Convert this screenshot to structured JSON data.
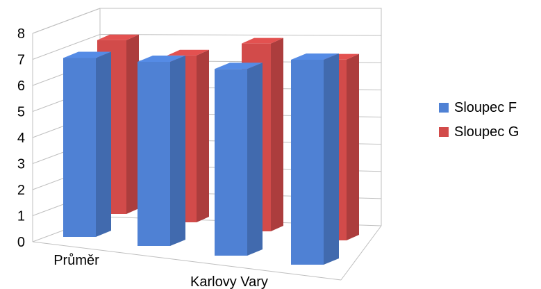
{
  "chart_data": {
    "type": "bar",
    "style": "3d-clustered-columns",
    "categories": [
      "Průměr",
      "",
      "Karlovy Vary",
      ""
    ],
    "series": [
      {
        "name": "Sloupec F",
        "values": [
          6.6,
          6.8,
          6.9,
          7.6
        ],
        "color": "#4f81d4"
      },
      {
        "name": "Sloupec G",
        "values": [
          7.5,
          7.2,
          8.1,
          7.8
        ],
        "color": "#d24b4a"
      }
    ],
    "ylim": [
      0,
      8
    ],
    "yticks": [
      "0",
      "1",
      "2",
      "3",
      "4",
      "5",
      "6",
      "7",
      "8"
    ],
    "grid": true,
    "legend": "right"
  }
}
